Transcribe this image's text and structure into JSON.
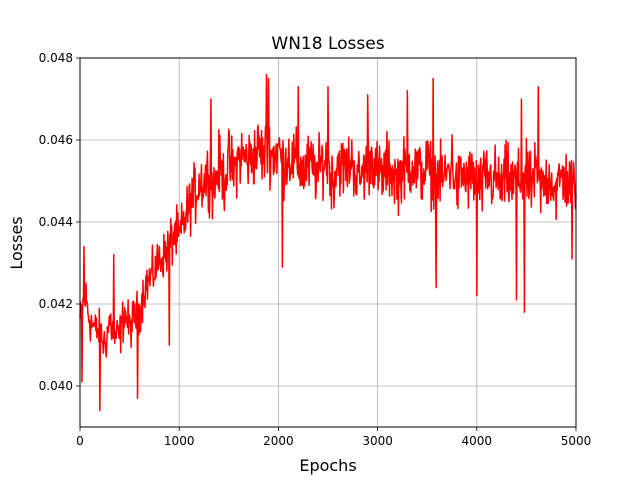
{
  "chart_data": {
    "type": "line",
    "title": "WN18 Losses",
    "xlabel": "Epochs",
    "ylabel": "Losses",
    "xlim": [
      0,
      5000
    ],
    "ylim": [
      0.039,
      0.048
    ],
    "xticks": [
      0,
      1000,
      2000,
      3000,
      4000,
      5000
    ],
    "xtick_labels": [
      "0",
      "1000",
      "2000",
      "3000",
      "4000",
      "5000"
    ],
    "yticks": [
      0.04,
      0.042,
      0.044,
      0.046,
      0.048
    ],
    "ytick_labels": [
      "0.040",
      "0.042",
      "0.044",
      "0.046",
      "0.048"
    ],
    "grid": true,
    "legend": "none",
    "series": [
      {
        "color": "#ff0000",
        "x": [
          0,
          50,
          100,
          150,
          200,
          250,
          300,
          350,
          400,
          450,
          500,
          550,
          600,
          650,
          700,
          750,
          800,
          850,
          900,
          950,
          1000,
          1050,
          1100,
          1150,
          1200,
          1250,
          1300,
          1350,
          1400,
          1450,
          1500,
          1550,
          1600,
          1650,
          1700,
          1750,
          1800,
          1850,
          1900,
          1950,
          2000,
          2050,
          2100,
          2150,
          2200,
          2250,
          2300,
          2350,
          2400,
          2450,
          2500,
          2550,
          2600,
          2650,
          2700,
          2750,
          2800,
          2850,
          2900,
          2950,
          3000,
          3050,
          3100,
          3150,
          3200,
          3250,
          3300,
          3350,
          3400,
          3450,
          3500,
          3550,
          3600,
          3650,
          3700,
          3750,
          3800,
          3850,
          3900,
          3950,
          4000,
          4050,
          4100,
          4150,
          4200,
          4250,
          4300,
          4350,
          4400,
          4450,
          4500,
          4550,
          4600,
          4650,
          4700,
          4750,
          4800,
          4850,
          4900,
          4950,
          5000
        ],
        "y": [
          0.0416,
          0.0422,
          0.0416,
          0.0414,
          0.0413,
          0.041,
          0.0416,
          0.0412,
          0.0412,
          0.0418,
          0.0414,
          0.0417,
          0.0418,
          0.0424,
          0.0426,
          0.0428,
          0.0431,
          0.0432,
          0.0434,
          0.0437,
          0.0436,
          0.044,
          0.0444,
          0.0446,
          0.045,
          0.045,
          0.0452,
          0.0448,
          0.0454,
          0.045,
          0.0455,
          0.0452,
          0.0456,
          0.0456,
          0.0455,
          0.0456,
          0.0458,
          0.0456,
          0.0458,
          0.0456,
          0.0458,
          0.0454,
          0.0456,
          0.0455,
          0.0454,
          0.0452,
          0.0454,
          0.0453,
          0.0452,
          0.0455,
          0.0454,
          0.045,
          0.0455,
          0.0453,
          0.0454,
          0.0455,
          0.045,
          0.0452,
          0.0454,
          0.0456,
          0.0452,
          0.0451,
          0.0454,
          0.0452,
          0.045,
          0.0453,
          0.0452,
          0.0455,
          0.0452,
          0.0452,
          0.0454,
          0.0451,
          0.0452,
          0.045,
          0.0452,
          0.0455,
          0.0448,
          0.0452,
          0.045,
          0.0451,
          0.045,
          0.0448,
          0.0452,
          0.045,
          0.0451,
          0.0448,
          0.0452,
          0.0449,
          0.045,
          0.045,
          0.0451,
          0.0449,
          0.0452,
          0.0448,
          0.045,
          0.0451,
          0.0447,
          0.0451,
          0.045,
          0.0449,
          0.045
        ],
        "noise_amplitude": [
          0.0004,
          0.0006,
          0.0005,
          0.0004,
          0.0005,
          0.0005,
          0.0005,
          0.0005,
          0.0005,
          0.0005,
          0.0005,
          0.0005,
          0.0005,
          0.0005,
          0.0005,
          0.0005,
          0.0005,
          0.0005,
          0.0006,
          0.0006,
          0.0006,
          0.0006,
          0.0006,
          0.0007,
          0.0007,
          0.0007,
          0.0007,
          0.0007,
          0.0007,
          0.0007,
          0.0007,
          0.0007,
          0.0007,
          0.0007,
          0.0007,
          0.0007,
          0.0007,
          0.0007,
          0.0007,
          0.0007,
          0.0007,
          0.0007,
          0.0007,
          0.0007,
          0.0007,
          0.0007,
          0.0007,
          0.0007,
          0.0007,
          0.0007,
          0.0007,
          0.0007,
          0.0007,
          0.0007,
          0.0007,
          0.0007,
          0.0007,
          0.0007,
          0.0007,
          0.0007,
          0.0007,
          0.0007,
          0.0007,
          0.0007,
          0.0007,
          0.0007,
          0.0007,
          0.0007,
          0.0007,
          0.0007,
          0.0007,
          0.0007,
          0.0007,
          0.0007,
          0.0007,
          0.0007,
          0.0007,
          0.0007,
          0.0007,
          0.0007,
          0.0007,
          0.0007,
          0.0007,
          0.0007,
          0.0007,
          0.0007,
          0.0007,
          0.0007,
          0.0007,
          0.0007,
          0.0007,
          0.0007,
          0.0007,
          0.0007,
          0.0007,
          0.0007,
          0.0007,
          0.0007,
          0.0007,
          0.0007,
          0.0007
        ],
        "spikes": [
          {
            "x": 20,
            "y": 0.0401
          },
          {
            "x": 40,
            "y": 0.0434
          },
          {
            "x": 200,
            "y": 0.0394
          },
          {
            "x": 340,
            "y": 0.0432
          },
          {
            "x": 580,
            "y": 0.0397
          },
          {
            "x": 900,
            "y": 0.041
          },
          {
            "x": 1320,
            "y": 0.047
          },
          {
            "x": 1880,
            "y": 0.0476
          },
          {
            "x": 1900,
            "y": 0.0475
          },
          {
            "x": 2040,
            "y": 0.0429
          },
          {
            "x": 2200,
            "y": 0.0473
          },
          {
            "x": 2500,
            "y": 0.0473
          },
          {
            "x": 2900,
            "y": 0.0471
          },
          {
            "x": 3300,
            "y": 0.0472
          },
          {
            "x": 3560,
            "y": 0.0475
          },
          {
            "x": 3590,
            "y": 0.0424
          },
          {
            "x": 4000,
            "y": 0.0422
          },
          {
            "x": 4400,
            "y": 0.0421
          },
          {
            "x": 4450,
            "y": 0.047
          },
          {
            "x": 4480,
            "y": 0.0418
          },
          {
            "x": 4620,
            "y": 0.0473
          },
          {
            "x": 4960,
            "y": 0.0431
          }
        ]
      }
    ]
  }
}
